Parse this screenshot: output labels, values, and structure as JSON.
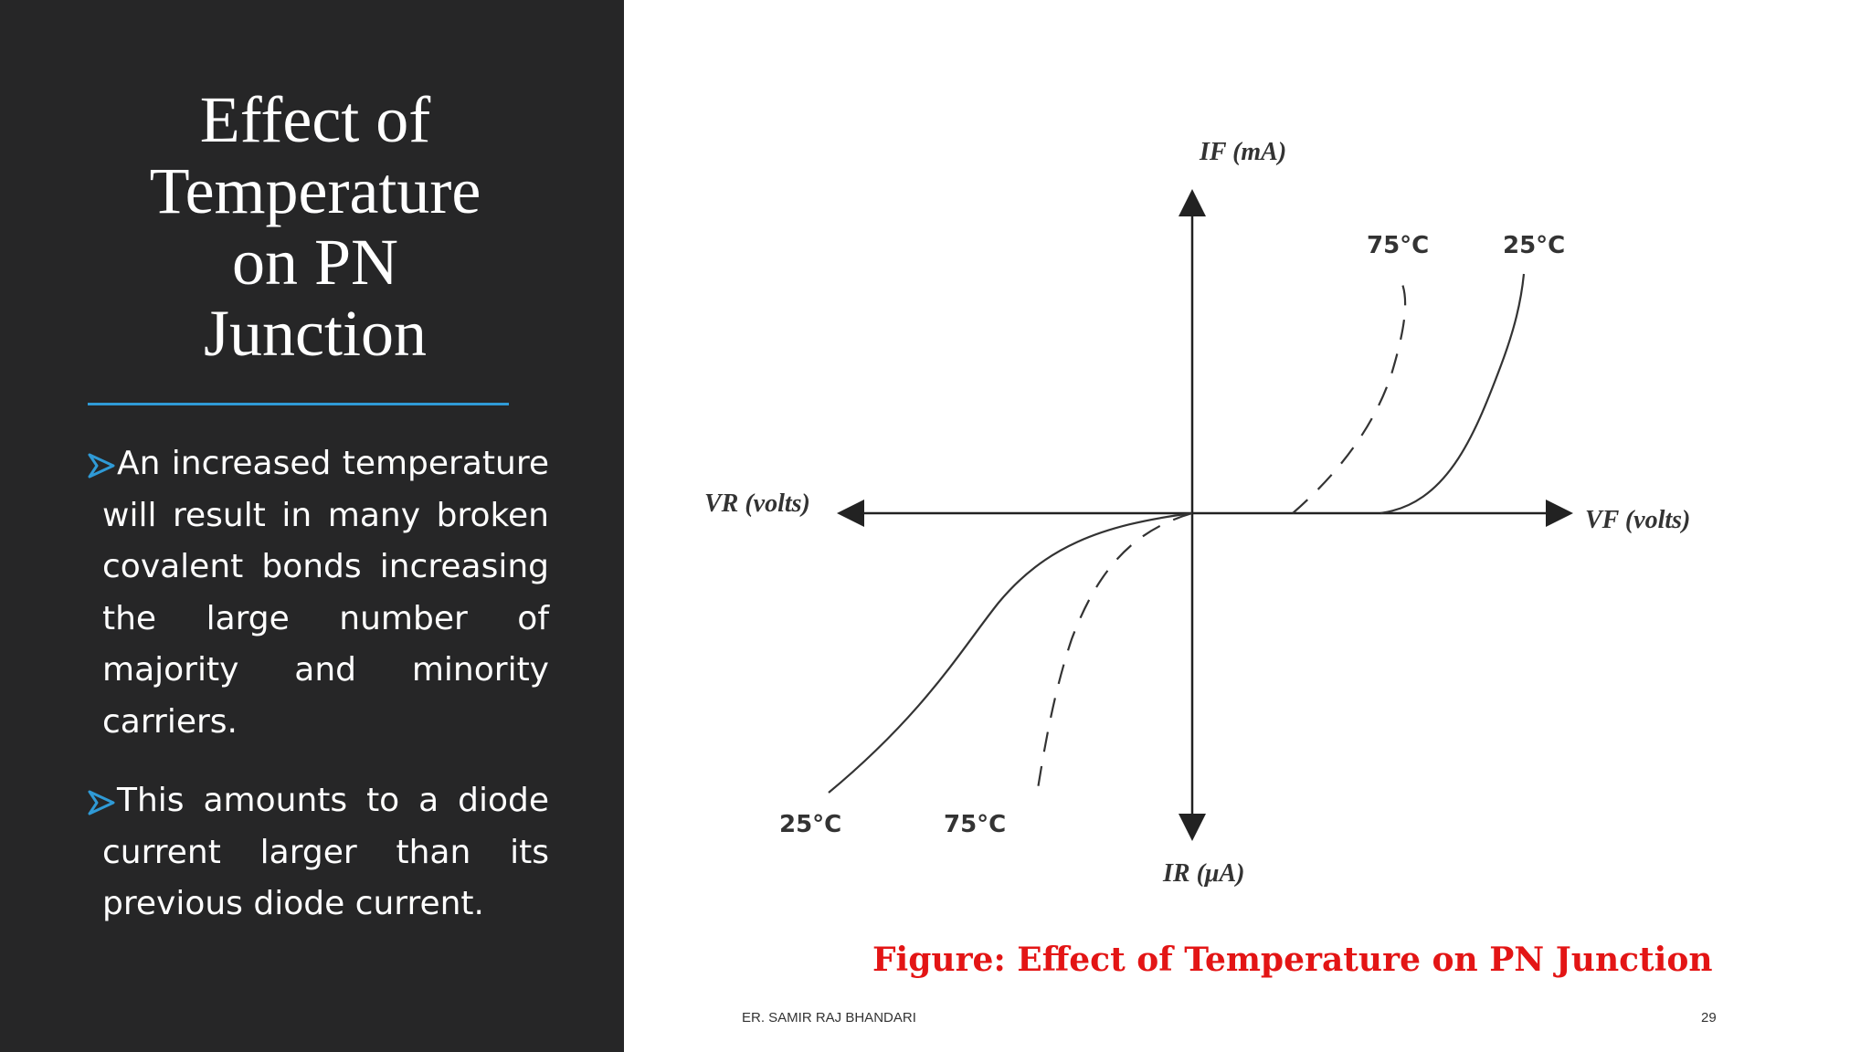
{
  "slide": {
    "title_lines": [
      "Effect of",
      "Temperature",
      "on PN",
      "Junction"
    ],
    "bullets": [
      "An increased temperature will result in many broken covalent bonds increasing the large number of majority and minority carriers.",
      "This amounts to a diode current larger than its previous diode current."
    ],
    "accent_color": "#2f9ad6",
    "panel_color": "#262627"
  },
  "figure": {
    "labels": {
      "if_axis": "IF (mA)",
      "ir_axis": "IR (μA)",
      "vr_axis": "VR (volts)",
      "vf_axis": "VF (volts)"
    },
    "temperatures": {
      "forward_hot": "75°C",
      "forward_cold": "25°C",
      "reverse_cold": "25°C",
      "reverse_hot": "75°C"
    },
    "caption": "Figure: Effect of Temperature on PN Junction",
    "caption_color": "#e31515"
  },
  "footer": {
    "author": "ER. SAMIR RAJ BHANDARI",
    "page_number": "29"
  }
}
